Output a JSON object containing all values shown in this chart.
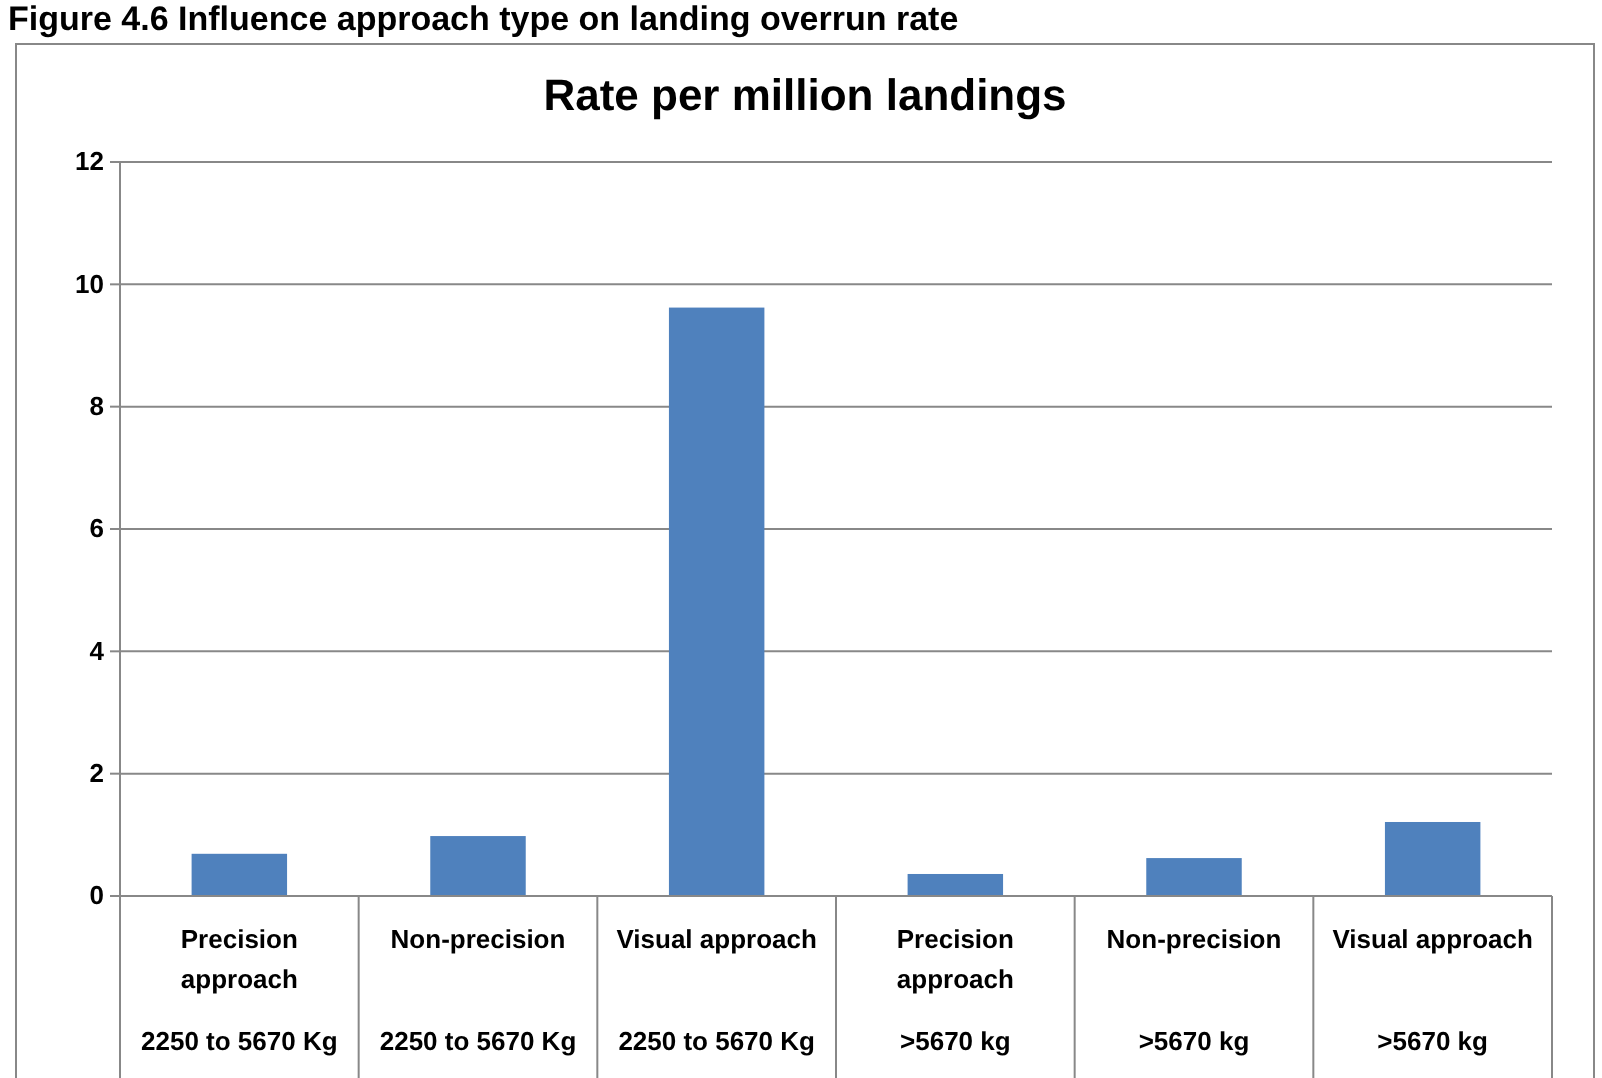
{
  "chart_data": {
    "type": "bar",
    "title": "Rate per million landings",
    "annotations": [
      "Figure 4.6 Influence approach type on landing overrun rate"
    ],
    "categories": [
      "Precision approach\n2250 to 5670 Kg",
      "Non-precision\n2250 to 5670 Kg",
      "Visual approach\n2250 to 5670 Kg",
      "Precision approach\n>5670 kg",
      "Non-precision\n>5670 kg",
      "Visual approach\n>5670 kg"
    ],
    "values": [
      0.69,
      0.98,
      9.62,
      0.36,
      0.62,
      1.21
    ],
    "color": "#4f81bd",
    "ylim": [
      0,
      12
    ],
    "yticks": [
      0,
      2,
      4,
      6,
      8,
      10,
      12
    ],
    "grid": "y"
  }
}
